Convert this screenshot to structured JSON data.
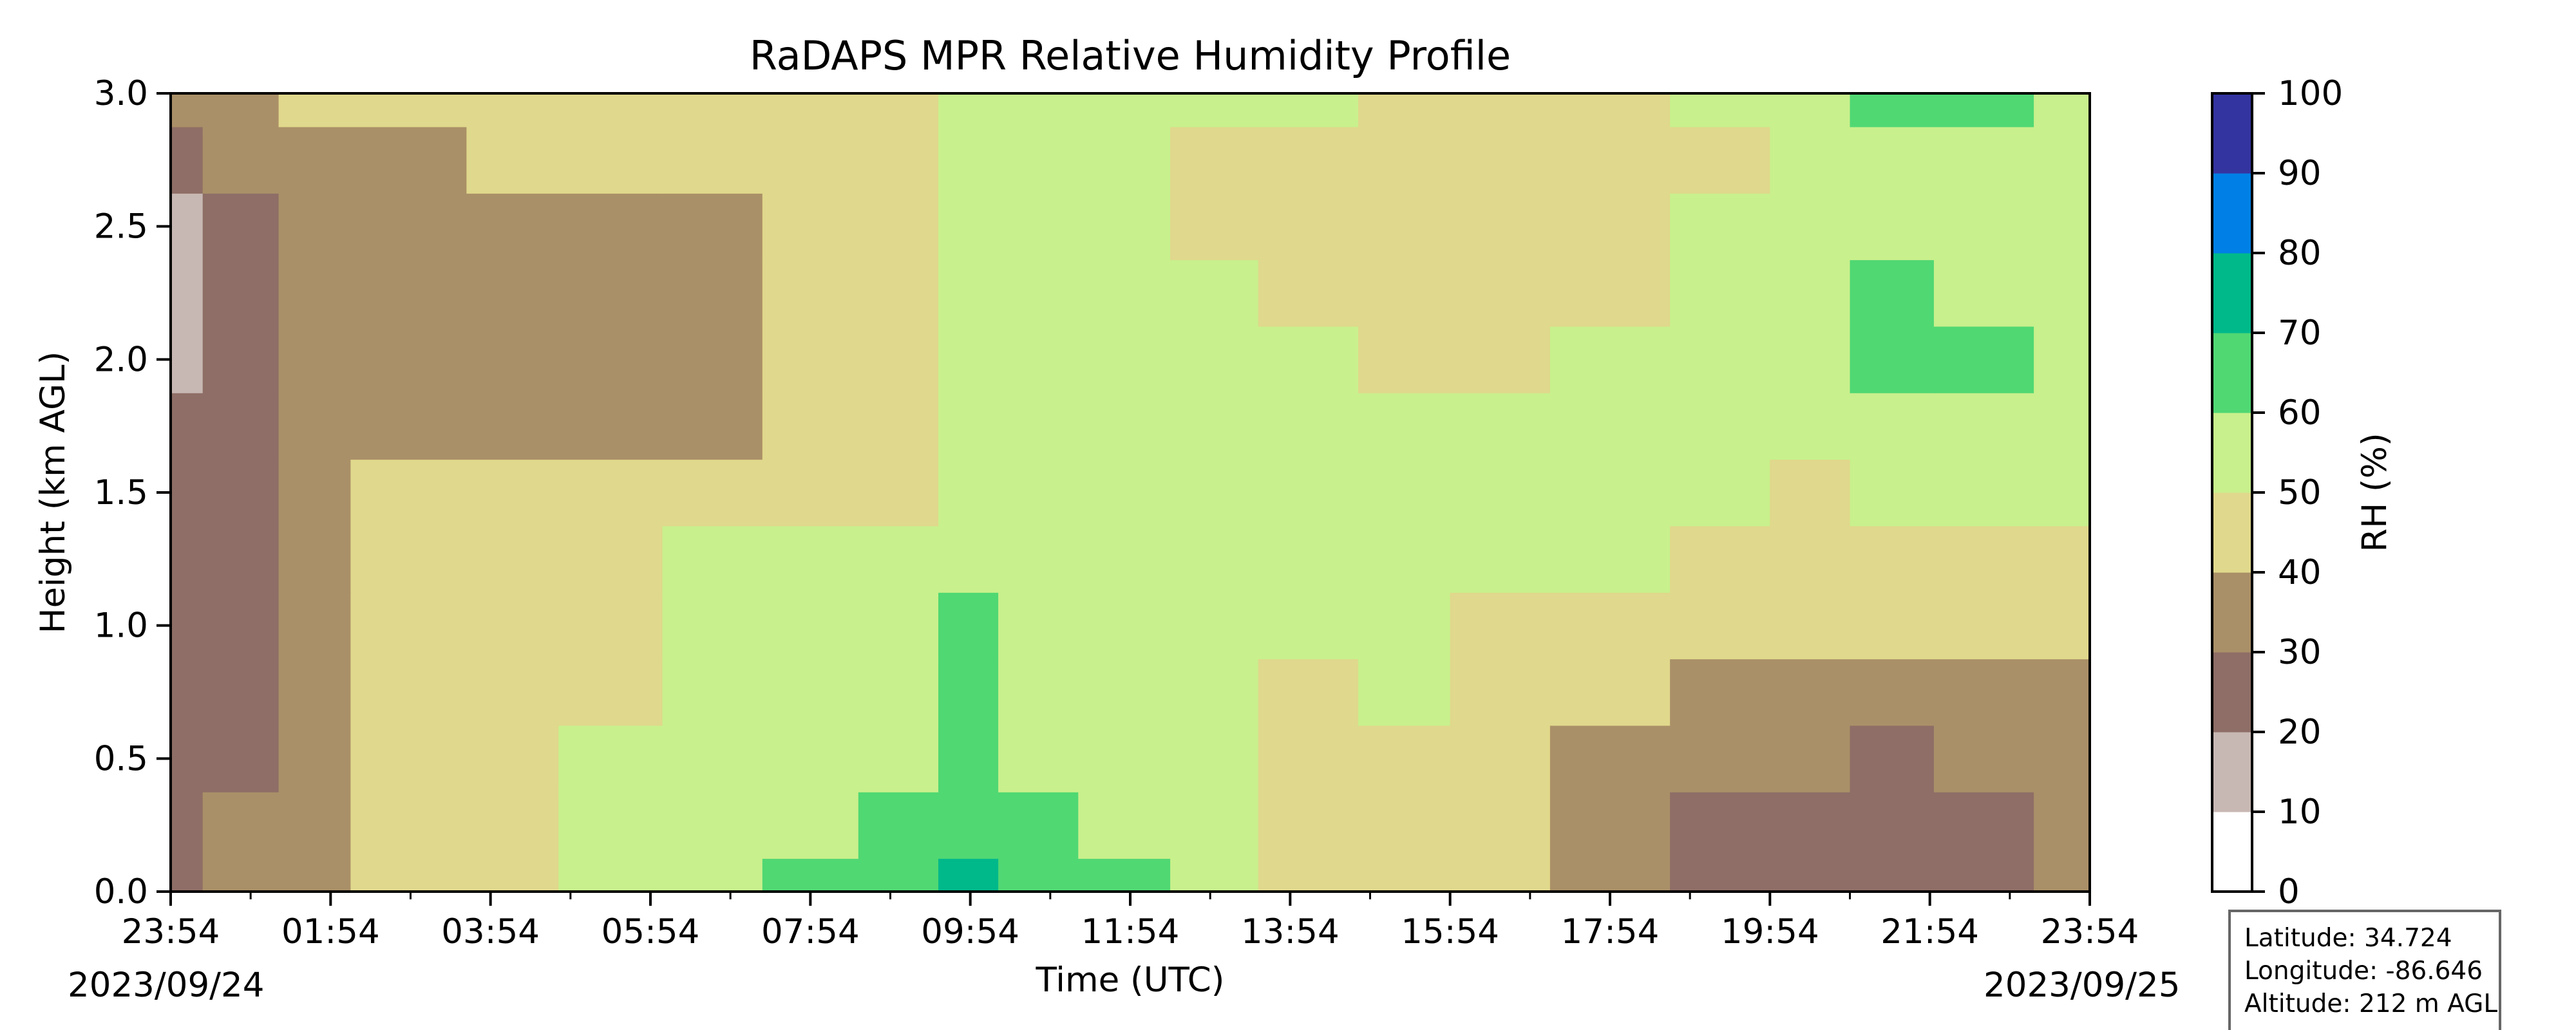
{
  "chart_data": {
    "type": "heatmap",
    "title": "RaDAPS MPR Relative Humidity Profile",
    "xlabel": "Time (UTC)",
    "ylabel": "Height (km AGL)",
    "x_ticks": [
      "23:54",
      "01:54",
      "03:54",
      "05:54",
      "07:54",
      "09:54",
      "11:54",
      "13:54",
      "15:54",
      "17:54",
      "19:54",
      "21:54",
      "23:54"
    ],
    "x_range": [
      "2023-09-24 23:54",
      "2023-09-25 23:54"
    ],
    "start_date": "2023/09/24",
    "end_date": "2023/09/25",
    "y_ticks": [
      "0.0",
      "0.5",
      "1.0",
      "1.5",
      "2.0",
      "2.5",
      "3.0"
    ],
    "ylim": [
      0.0,
      3.0
    ],
    "colorbar": {
      "label": "RH (%)",
      "ticks": [
        "0",
        "10",
        "20",
        "30",
        "40",
        "50",
        "60",
        "70",
        "80",
        "90",
        "100"
      ],
      "levels": [
        {
          "range": [
            0,
            10
          ],
          "color": "#ffffff"
        },
        {
          "range": [
            10,
            20
          ],
          "color": "#c8b8b4"
        },
        {
          "range": [
            20,
            30
          ],
          "color": "#8e6e66"
        },
        {
          "range": [
            30,
            40
          ],
          "color": "#aa9068"
        },
        {
          "range": [
            40,
            50
          ],
          "color": "#e0d88c"
        },
        {
          "range": [
            50,
            60
          ],
          "color": "#c8f08c"
        },
        {
          "range": [
            60,
            70
          ],
          "color": "#50d873"
        },
        {
          "range": [
            70,
            80
          ],
          "color": "#00b98a"
        },
        {
          "range": [
            80,
            90
          ],
          "color": "#0080e6"
        },
        {
          "range": [
            90,
            100
          ],
          "color": "#3434a0"
        }
      ]
    },
    "time_hours_after_start": [
      0,
      0.8,
      1.9,
      2.6,
      3.2,
      4.2,
      5.5,
      6.8,
      8.0,
      9.2,
      10.0,
      10.7,
      12.0,
      13.0,
      14.2,
      15.5,
      16.5,
      18.0,
      19.5,
      20.5,
      21.5,
      22.6,
      24.0
    ],
    "rh_profile_grid": {
      "heights_km": [
        0.0,
        0.25,
        0.5,
        0.75,
        1.0,
        1.25,
        1.5,
        1.75,
        2.0,
        2.25,
        2.5,
        2.75,
        3.0
      ],
      "rows": [
        [
          25,
          30,
          35,
          42,
          45,
          47,
          53,
          58,
          64,
          66,
          72,
          68,
          63,
          55,
          45,
          45,
          45,
          35,
          25,
          28,
          25,
          28,
          35
        ],
        [
          25,
          30,
          35,
          42,
          45,
          47,
          52,
          55,
          58,
          60,
          66,
          60,
          57,
          55,
          48,
          46,
          45,
          35,
          28,
          28,
          25,
          28,
          35
        ],
        [
          22,
          27,
          33,
          40,
          44,
          46,
          50,
          52,
          55,
          56,
          62,
          56,
          54,
          52,
          48,
          46,
          45,
          38,
          32,
          32,
          28,
          30,
          35
        ],
        [
          22,
          25,
          33,
          42,
          45,
          46,
          48,
          50,
          55,
          56,
          64,
          56,
          54,
          52,
          48,
          50,
          45,
          40,
          35,
          35,
          35,
          35,
          35
        ],
        [
          22,
          25,
          35,
          48,
          45,
          45,
          48,
          52,
          58,
          56,
          62,
          54,
          54,
          52,
          50,
          52,
          46,
          48,
          46,
          45,
          45,
          45,
          45
        ],
        [
          22,
          25,
          35,
          45,
          44,
          45,
          47,
          50,
          52,
          52,
          58,
          54,
          54,
          52,
          52,
          54,
          50,
          52,
          48,
          48,
          48,
          48,
          48
        ],
        [
          22,
          25,
          33,
          42,
          42,
          43,
          44,
          40,
          45,
          48,
          55,
          54,
          55,
          54,
          52,
          54,
          52,
          52,
          50,
          48,
          52,
          50,
          50
        ],
        [
          22,
          25,
          33,
          32,
          35,
          38,
          38,
          36,
          42,
          45,
          52,
          54,
          55,
          54,
          52,
          52,
          50,
          52,
          52,
          50,
          55,
          52,
          52
        ],
        [
          15,
          25,
          30,
          30,
          35,
          34,
          34,
          36,
          40,
          42,
          52,
          52,
          54,
          54,
          50,
          48,
          48,
          50,
          52,
          52,
          62,
          64,
          55
        ],
        [
          15,
          25,
          30,
          30,
          35,
          36,
          36,
          36,
          40,
          42,
          52,
          52,
          54,
          54,
          48,
          46,
          46,
          48,
          52,
          52,
          62,
          58,
          55
        ],
        [
          18,
          25,
          30,
          32,
          35,
          38,
          38,
          38,
          42,
          44,
          52,
          52,
          52,
          48,
          46,
          46,
          48,
          48,
          50,
          52,
          55,
          55,
          55
        ],
        [
          25,
          30,
          34,
          36,
          38,
          40,
          42,
          42,
          44,
          46,
          54,
          52,
          52,
          48,
          46,
          46,
          46,
          48,
          48,
          52,
          55,
          55,
          55
        ],
        [
          35,
          38,
          42,
          40,
          40,
          42,
          44,
          44,
          44,
          46,
          56,
          54,
          54,
          52,
          50,
          48,
          48,
          48,
          52,
          54,
          62,
          62,
          58
        ]
      ]
    },
    "info_box": {
      "latitude": "Latitude: 34.724",
      "longitude": "Longitude: -86.646",
      "altitude": "Altitude: 212 m AGL"
    }
  }
}
